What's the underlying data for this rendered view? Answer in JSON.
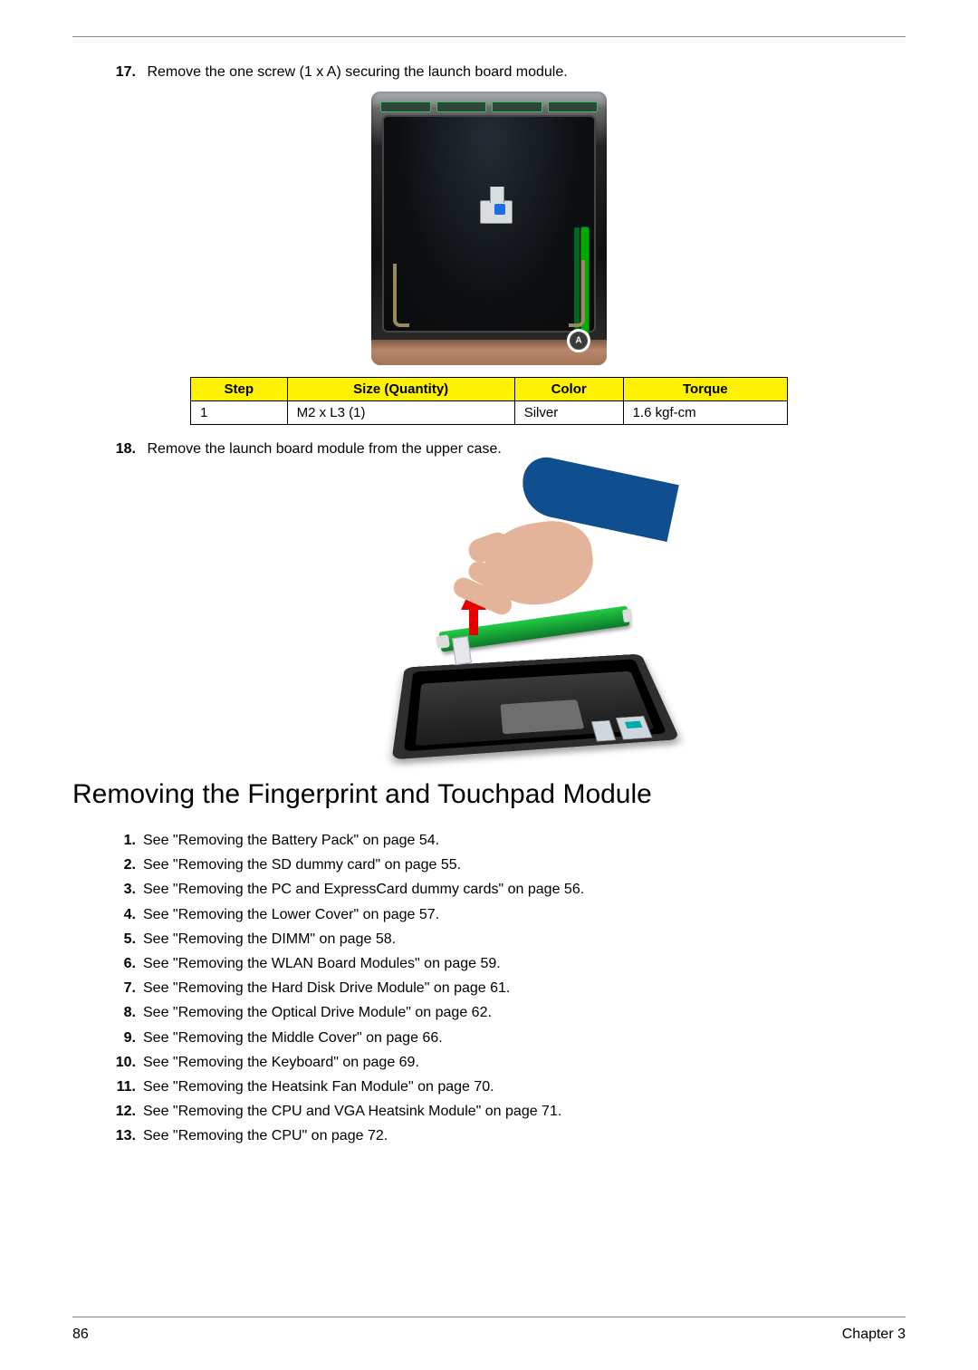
{
  "step17": {
    "num": "17.",
    "text": "Remove the one screw (1 x A) securing the launch board module."
  },
  "screw_table": {
    "headers": {
      "step": "Step",
      "size": "Size (Quantity)",
      "color": "Color",
      "torque": "Torque"
    },
    "row": {
      "step": "1",
      "size": "M2 x L3 (1)",
      "color": "Silver",
      "torque": "1.6 kgf-cm"
    },
    "header_bg": "#fff200"
  },
  "step18": {
    "num": "18.",
    "text": "Remove the launch board module from the upper case."
  },
  "section_title": "Removing the Fingerprint and Touchpad Module",
  "refs": [
    {
      "num": "1.",
      "text": "See \"Removing the Battery Pack\" on page 54."
    },
    {
      "num": "2.",
      "text": "See \"Removing the SD dummy card\" on page 55."
    },
    {
      "num": "3.",
      "text": "See \"Removing the PC and ExpressCard dummy cards\" on page 56."
    },
    {
      "num": "4.",
      "text": "See \"Removing the Lower Cover\" on page 57."
    },
    {
      "num": "5.",
      "text": "See \"Removing the DIMM\" on page 58."
    },
    {
      "num": "6.",
      "text": "See \"Removing the WLAN Board Modules\" on page 59."
    },
    {
      "num": "7.",
      "text": "See \"Removing the Hard Disk Drive Module\" on page 61."
    },
    {
      "num": "8.",
      "text": "See \"Removing the Optical Drive Module\" on page 62."
    },
    {
      "num": "9.",
      "text": "See \"Removing the Middle Cover\" on page 66."
    },
    {
      "num": "10.",
      "text": "See \"Removing the Keyboard\" on page 69."
    },
    {
      "num": "11.",
      "text": "See \"Removing the Heatsink Fan Module\" on page 70."
    },
    {
      "num": "12.",
      "text": "See \"Removing the CPU and VGA Heatsink Module\" on page 71."
    },
    {
      "num": "13.",
      "text": "See \"Removing the CPU\" on page 72."
    }
  ],
  "footer": {
    "page": "86",
    "chapter": "Chapter 3"
  }
}
